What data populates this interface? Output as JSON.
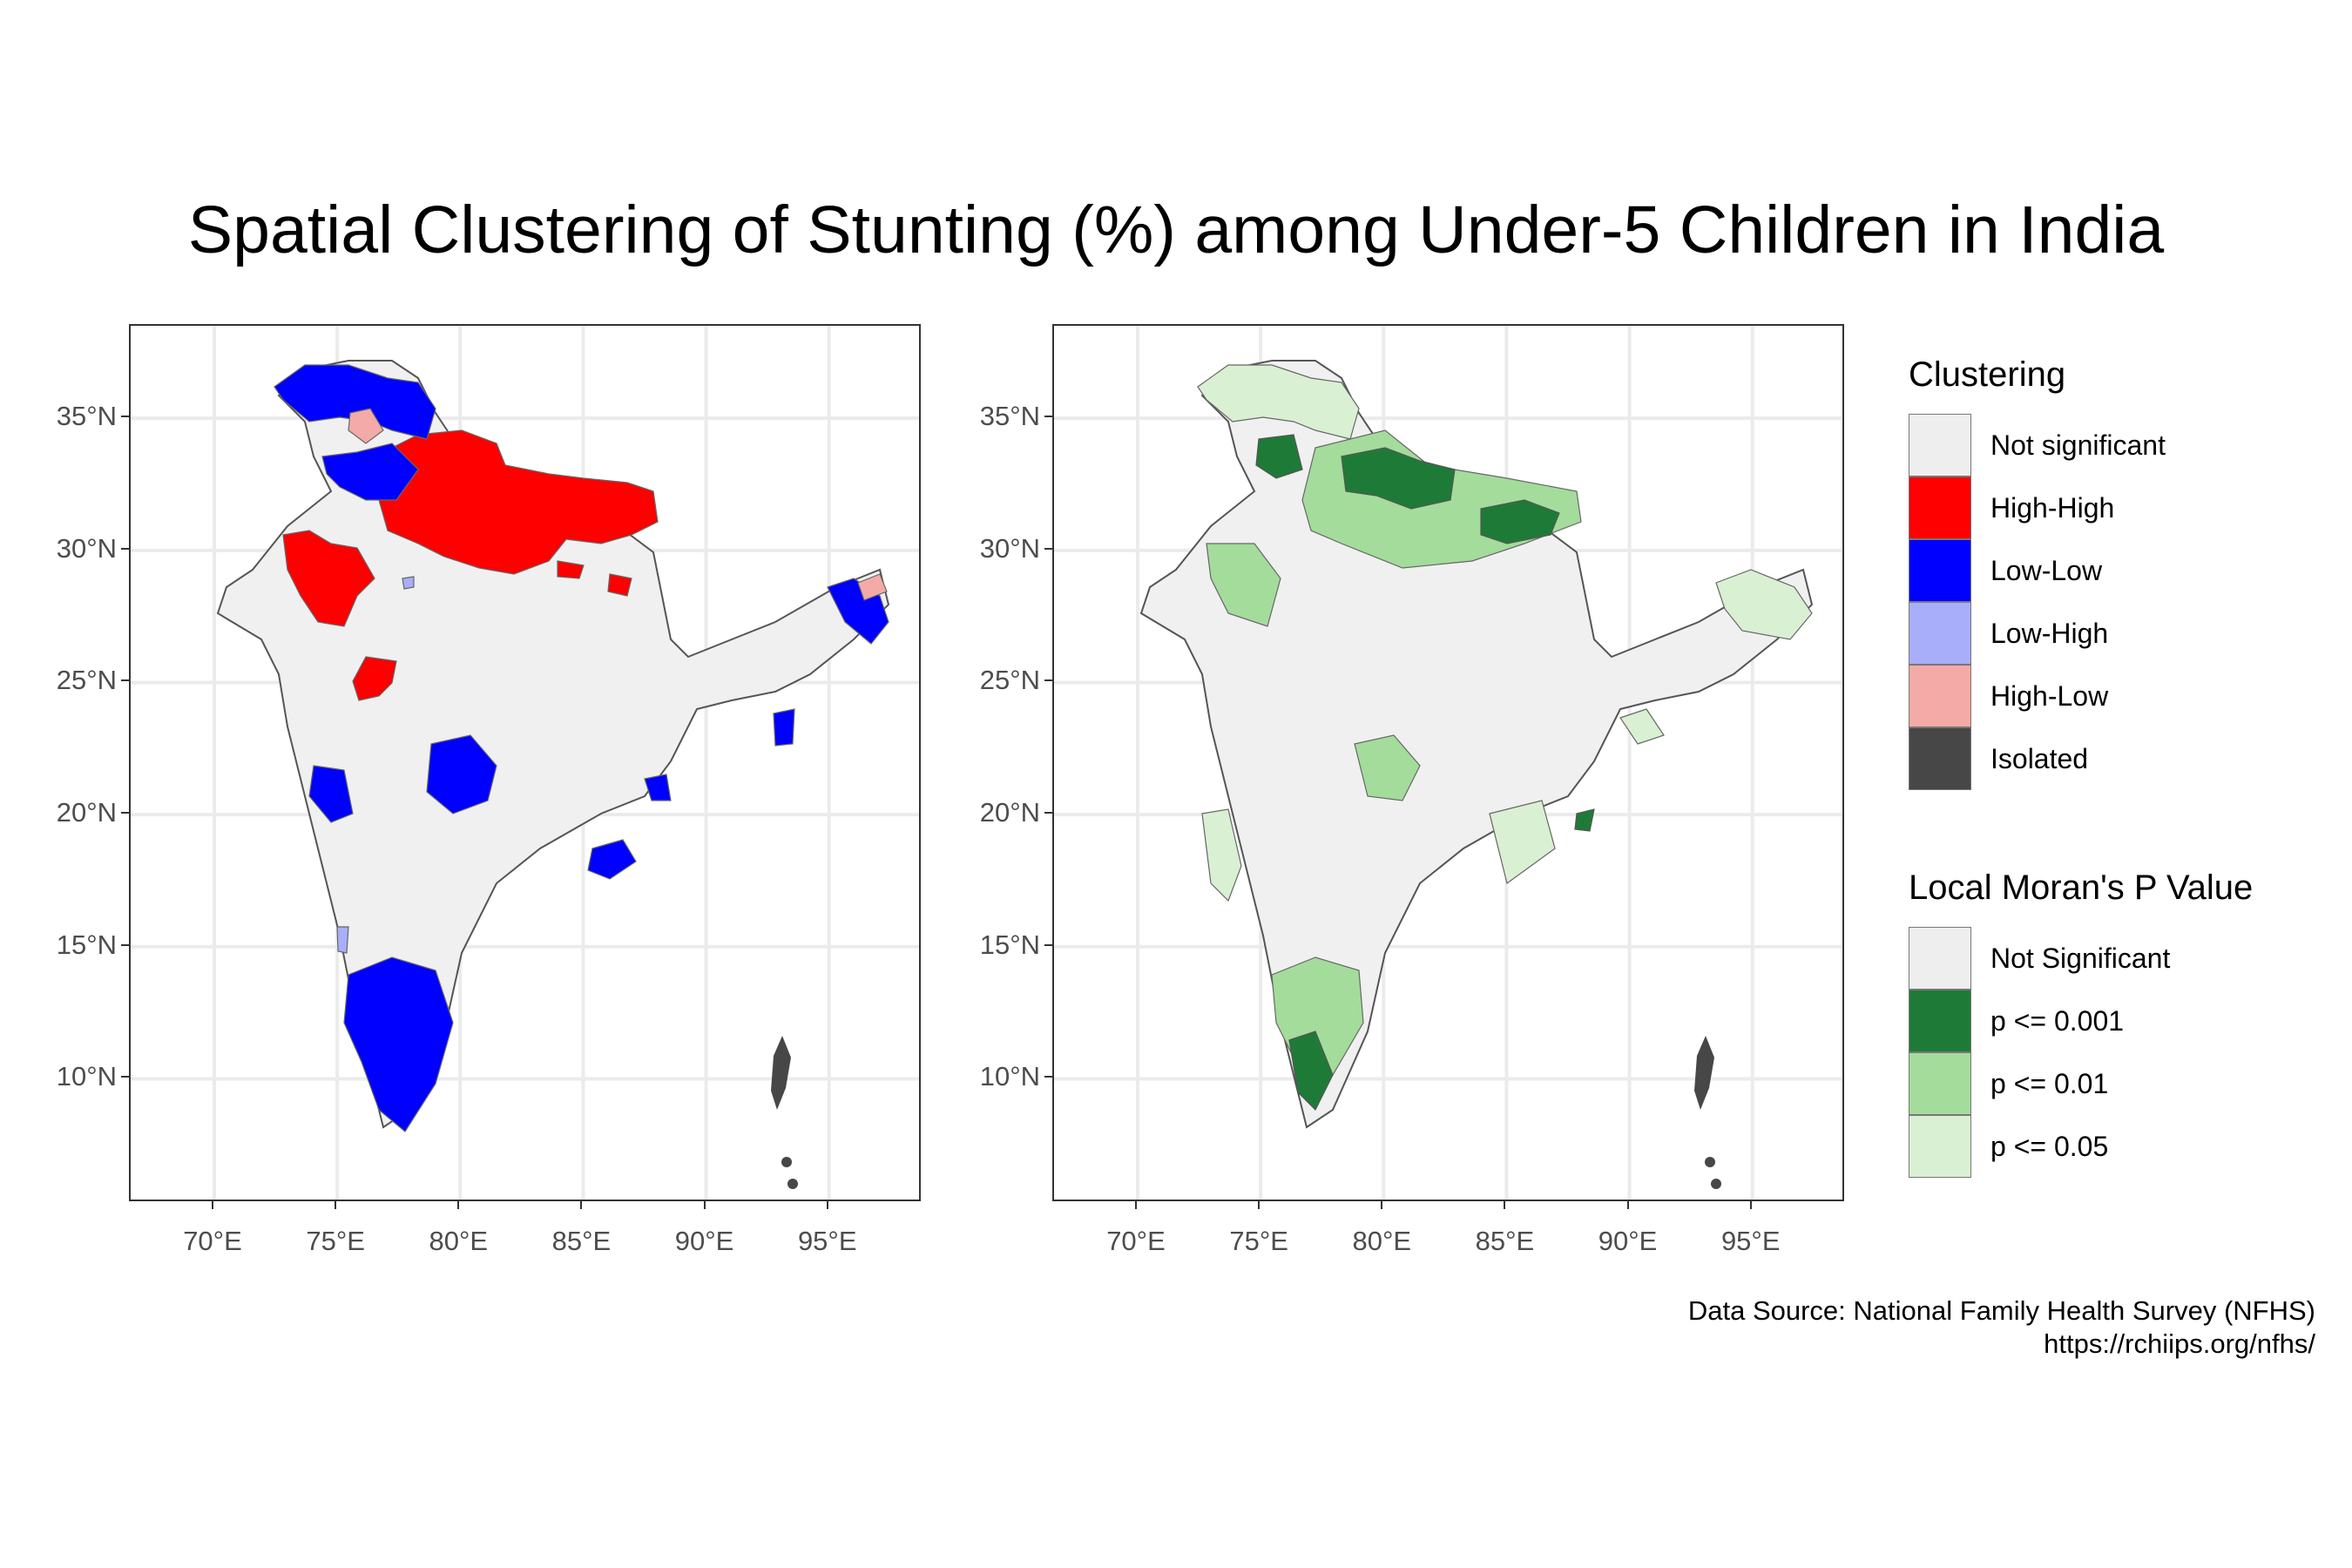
{
  "title": "Spatial Clustering of Stunting (%) among Under-5 Children in India",
  "axes": {
    "y_ticks": [
      "35°N",
      "30°N",
      "25°N",
      "20°N",
      "15°N",
      "10°N"
    ],
    "x_ticks": [
      "70°E",
      "75°E",
      "80°E",
      "85°E",
      "90°E",
      "95°E"
    ],
    "lon_range": [
      66.6,
      98.8
    ],
    "lat_range": [
      5.3,
      38.5
    ]
  },
  "legend_clustering": {
    "title": "Clustering",
    "items": [
      {
        "label": "Not significant",
        "color": "#eeeeee"
      },
      {
        "label": "High-High",
        "color": "#ff0000"
      },
      {
        "label": "Low-Low",
        "color": "#0000ff"
      },
      {
        "label": "Low-High",
        "color": "#a9aefa"
      },
      {
        "label": "High-Low",
        "color": "#f4aaa6"
      },
      {
        "label": "Isolated",
        "color": "#474747"
      }
    ]
  },
  "legend_pvalue": {
    "title": "Local Moran's P Value",
    "items": [
      {
        "label": "Not Significant",
        "color": "#eeeeee"
      },
      {
        "label": "p <= 0.001",
        "color": "#1e7b37"
      },
      {
        "label": "p <= 0.01",
        "color": "#a3dc9b"
      },
      {
        "label": "p <= 0.05",
        "color": "#d9f0d3"
      }
    ]
  },
  "caption": {
    "line1": "Data Source: National Family Health Survey (NFHS)",
    "line2": "https://rchiips.org/nfhs/"
  }
}
